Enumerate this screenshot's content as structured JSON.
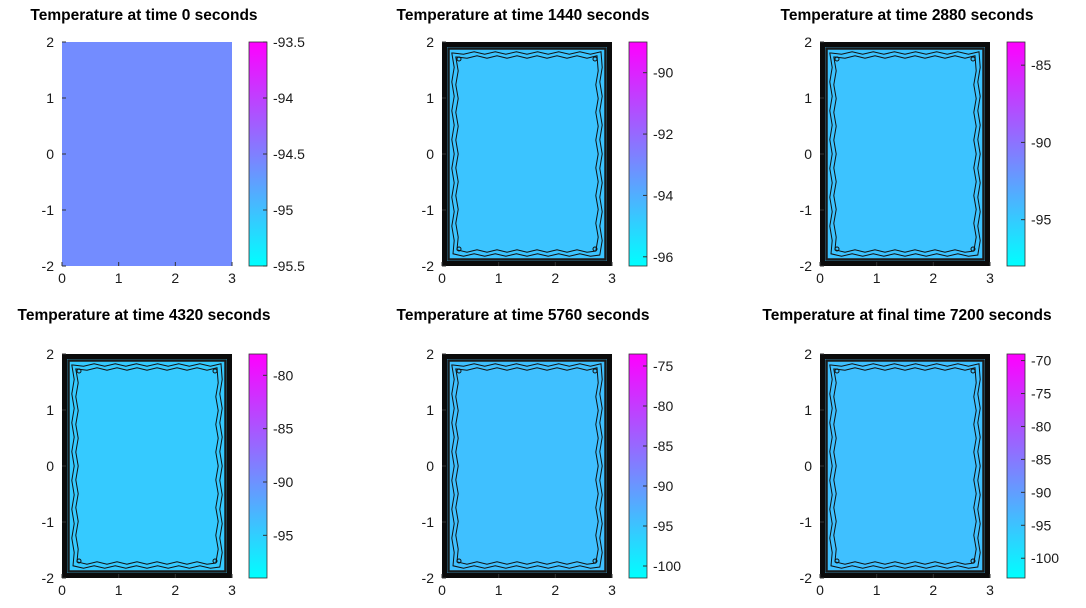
{
  "chart_data": [
    {
      "type": "heatmap",
      "title": "Temperature at time 0 seconds",
      "x_ticks": [
        0,
        1,
        2,
        3
      ],
      "y_ticks": [
        2,
        1,
        0,
        -1,
        -2
      ],
      "xlim": [
        0,
        3
      ],
      "ylim": [
        -2,
        2
      ],
      "interior_value": -94.6,
      "boundary_value": null,
      "contours": false,
      "colorbar": {
        "range": [
          -95.5,
          -93.5
        ],
        "ticks": [
          "-93.5",
          "-94",
          "-94.5",
          "-95",
          "-95.5"
        ]
      }
    },
    {
      "type": "heatmap",
      "title": "Temperature at time 1440 seconds",
      "x_ticks": [
        0,
        1,
        2,
        3
      ],
      "y_ticks": [
        2,
        1,
        0,
        -1,
        -2
      ],
      "xlim": [
        0,
        3
      ],
      "ylim": [
        -2,
        2
      ],
      "interior_value": -94.6,
      "boundary_value": -89,
      "contours": true,
      "colorbar": {
        "range": [
          -96.3,
          -89
        ],
        "ticks": [
          "-90",
          "-92",
          "-94",
          "-96"
        ]
      }
    },
    {
      "type": "heatmap",
      "title": "Temperature at time 2880 seconds",
      "x_ticks": [
        0,
        1,
        2,
        3
      ],
      "y_ticks": [
        2,
        1,
        0,
        -1,
        -2
      ],
      "xlim": [
        0,
        3
      ],
      "ylim": [
        -2,
        2
      ],
      "interior_value": -94.6,
      "boundary_value": -83.5,
      "contours": true,
      "colorbar": {
        "range": [
          -98,
          -83.5
        ],
        "ticks": [
          "-85",
          "-90",
          "-95"
        ]
      }
    },
    {
      "type": "heatmap",
      "title": "Temperature at time 4320 seconds",
      "x_ticks": [
        0,
        1,
        2,
        3
      ],
      "y_ticks": [
        2,
        1,
        0,
        -1,
        -2
      ],
      "xlim": [
        0,
        3
      ],
      "ylim": [
        -2,
        2
      ],
      "interior_value": -94.6,
      "boundary_value": -78,
      "contours": true,
      "colorbar": {
        "range": [
          -99,
          -78
        ],
        "ticks": [
          "-80",
          "-85",
          "-90",
          "-95"
        ]
      }
    },
    {
      "type": "heatmap",
      "title": "Temperature at time 5760 seconds",
      "x_ticks": [
        0,
        1,
        2,
        3
      ],
      "y_ticks": [
        2,
        1,
        0,
        -1,
        -2
      ],
      "xlim": [
        0,
        3
      ],
      "ylim": [
        -2,
        2
      ],
      "interior_value": -94.6,
      "boundary_value": -73.5,
      "contours": true,
      "colorbar": {
        "range": [
          -101.5,
          -73.5
        ],
        "ticks": [
          "-75",
          "-80",
          "-85",
          "-90",
          "-95",
          "-100"
        ]
      }
    },
    {
      "type": "heatmap",
      "title": "Temperature at final time 7200 seconds",
      "x_ticks": [
        0,
        1,
        2,
        3
      ],
      "y_ticks": [
        2,
        1,
        0,
        -1,
        -2
      ],
      "xlim": [
        0,
        3
      ],
      "ylim": [
        -2,
        2
      ],
      "interior_value": -94.6,
      "boundary_value": -69,
      "contours": true,
      "colorbar": {
        "range": [
          -103,
          -69
        ],
        "ticks": [
          "-70",
          "-75",
          "-80",
          "-85",
          "-90",
          "-95",
          "-100"
        ]
      }
    }
  ]
}
